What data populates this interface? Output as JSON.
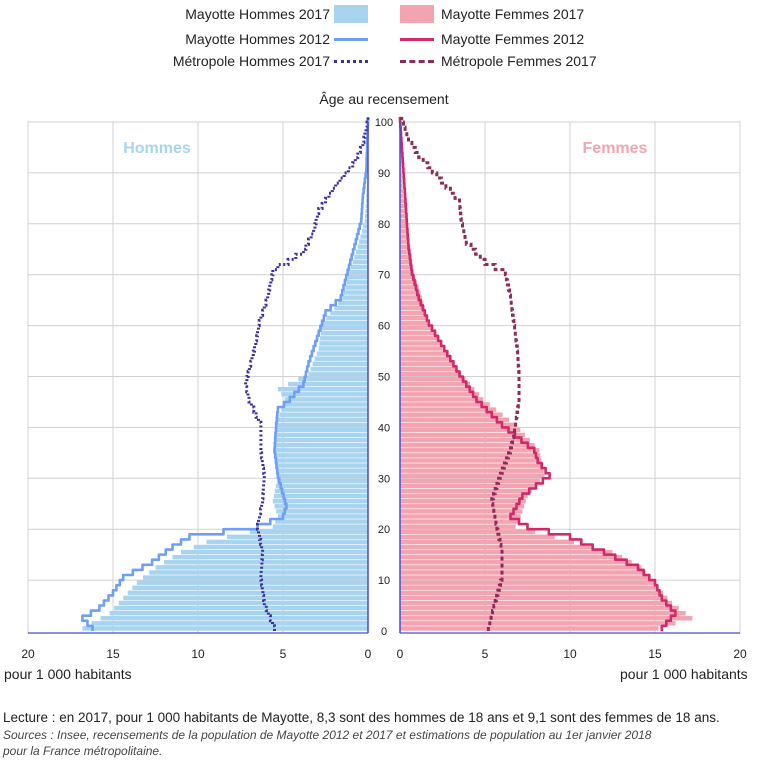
{
  "legend": {
    "mh2017": "Mayotte Hommes 2017",
    "mh2012": "Mayotte Hommes 2012",
    "metroH2017": "Métropole Hommes 2017",
    "mf2017": "Mayotte Femmes 2017",
    "mf2012": "Mayotte Femmes 2012",
    "metroF2017": "Métropole Femmes 2017"
  },
  "colors": {
    "men_bar": "#a8d4f0",
    "men_line": "#6f9ef5",
    "men_metro": "#3c309c",
    "women_bar": "#f3a4b1",
    "women_line": "#d12a6a",
    "women_metro": "#8e2b57",
    "axis": "#4a4ad0"
  },
  "units": {
    "left": "pour 1 000 habitants",
    "right": "pour 1 000 habitants"
  },
  "notes": {
    "lecture": "Lecture : en 2017, pour 1 000 habitants de Mayotte, 8,3 sont des hommes de 18 ans et 9,1 sont des femmes de 18 ans.",
    "sources_line1": "Sources : Insee, recensements de la population de Mayotte 2012 et 2017 et estimations de population au 1er janvier 2018",
    "sources_line2": "pour la France métropolitaine."
  },
  "chart_data": {
    "type": "population-pyramid",
    "title": "Âge au recensement",
    "label_men": "Hommes",
    "label_women": "Femmes",
    "x_range": [
      0,
      20
    ],
    "x_ticks": [
      0,
      5,
      10,
      15,
      20
    ],
    "age_range": [
      0,
      100
    ],
    "age_ticks": [
      0,
      10,
      20,
      30,
      40,
      50,
      60,
      70,
      80,
      90,
      100
    ],
    "men_2017_anchors": [
      [
        0,
        16.8
      ],
      [
        3,
        15.2
      ],
      [
        6,
        14.4
      ],
      [
        9,
        13.6
      ],
      [
        12,
        12.5
      ],
      [
        15,
        11.0
      ],
      [
        17,
        9.5
      ],
      [
        18,
        8.3
      ],
      [
        20,
        5.6
      ],
      [
        22,
        5.3
      ],
      [
        25,
        5.6
      ],
      [
        30,
        5.3
      ],
      [
        35,
        5.5
      ],
      [
        40,
        5.4
      ],
      [
        45,
        4.9
      ],
      [
        47,
        5.3
      ],
      [
        50,
        3.5
      ],
      [
        55,
        2.9
      ],
      [
        60,
        2.7
      ],
      [
        65,
        1.5
      ],
      [
        70,
        1.1
      ],
      [
        75,
        0.6
      ],
      [
        80,
        0.2
      ],
      [
        85,
        0.1
      ],
      [
        90,
        0
      ],
      [
        100,
        0
      ]
    ],
    "men_2012_anchors": [
      [
        0,
        16.2
      ],
      [
        2,
        16.8
      ],
      [
        4,
        15.8
      ],
      [
        7,
        15.0
      ],
      [
        10,
        14.4
      ],
      [
        13,
        12.7
      ],
      [
        16,
        11.5
      ],
      [
        18,
        10.5
      ],
      [
        20,
        6.5
      ],
      [
        22,
        5.0
      ],
      [
        24,
        4.8
      ],
      [
        30,
        5.3
      ],
      [
        35,
        5.5
      ],
      [
        40,
        5.4
      ],
      [
        43,
        5.3
      ],
      [
        45,
        4.6
      ],
      [
        48,
        3.8
      ],
      [
        52,
        3.5
      ],
      [
        58,
        2.9
      ],
      [
        62,
        2.5
      ],
      [
        65,
        1.6
      ],
      [
        70,
        1.2
      ],
      [
        75,
        0.8
      ],
      [
        80,
        0.4
      ],
      [
        85,
        0.3
      ],
      [
        90,
        0.1
      ],
      [
        100,
        0
      ]
    ],
    "men_metro_anchors": [
      [
        0,
        5.5
      ],
      [
        5,
        6.1
      ],
      [
        10,
        6.3
      ],
      [
        15,
        6.2
      ],
      [
        20,
        6.5
      ],
      [
        25,
        6.2
      ],
      [
        30,
        6.1
      ],
      [
        35,
        6.3
      ],
      [
        40,
        6.3
      ],
      [
        45,
        7.0
      ],
      [
        48,
        7.2
      ],
      [
        52,
        6.9
      ],
      [
        56,
        6.6
      ],
      [
        60,
        6.4
      ],
      [
        65,
        5.9
      ],
      [
        70,
        5.6
      ],
      [
        71,
        5.3
      ],
      [
        72,
        4.7
      ],
      [
        74,
        3.8
      ],
      [
        78,
        3.2
      ],
      [
        82,
        2.9
      ],
      [
        87,
        1.9
      ],
      [
        91,
        0.9
      ],
      [
        95,
        0.3
      ],
      [
        100,
        0
      ]
    ],
    "women_2017_anchors": [
      [
        0,
        15.2
      ],
      [
        2,
        17.2
      ],
      [
        5,
        16.0
      ],
      [
        8,
        15.2
      ],
      [
        12,
        14.2
      ],
      [
        15,
        12.5
      ],
      [
        18,
        9.1
      ],
      [
        20,
        6.8
      ],
      [
        22,
        7.1
      ],
      [
        26,
        7.5
      ],
      [
        30,
        8.5
      ],
      [
        35,
        8.2
      ],
      [
        40,
        6.8
      ],
      [
        45,
        4.9
      ],
      [
        50,
        3.6
      ],
      [
        55,
        2.5
      ],
      [
        60,
        1.7
      ],
      [
        65,
        1.3
      ],
      [
        70,
        0.8
      ],
      [
        75,
        0.6
      ],
      [
        80,
        0.4
      ],
      [
        85,
        0.2
      ],
      [
        90,
        0.1
      ],
      [
        100,
        0
      ]
    ],
    "women_2012_anchors": [
      [
        0,
        15.4
      ],
      [
        3,
        16.2
      ],
      [
        6,
        15.4
      ],
      [
        9,
        15.0
      ],
      [
        12,
        14.0
      ],
      [
        15,
        12.0
      ],
      [
        18,
        10.0
      ],
      [
        20,
        7.5
      ],
      [
        22,
        6.5
      ],
      [
        26,
        7.2
      ],
      [
        30,
        8.8
      ],
      [
        33,
        8.1
      ],
      [
        35,
        7.9
      ],
      [
        40,
        6.0
      ],
      [
        45,
        4.5
      ],
      [
        50,
        3.5
      ],
      [
        55,
        2.6
      ],
      [
        60,
        1.7
      ],
      [
        65,
        1.1
      ],
      [
        70,
        0.7
      ],
      [
        75,
        0.5
      ],
      [
        80,
        0.4
      ],
      [
        85,
        0.3
      ],
      [
        90,
        0.2
      ],
      [
        100,
        0
      ]
    ],
    "women_metro_anchors": [
      [
        0,
        5.2
      ],
      [
        5,
        5.6
      ],
      [
        10,
        6.0
      ],
      [
        15,
        6.0
      ],
      [
        20,
        5.7
      ],
      [
        25,
        5.4
      ],
      [
        30,
        5.9
      ],
      [
        35,
        6.5
      ],
      [
        40,
        6.8
      ],
      [
        45,
        7.0
      ],
      [
        50,
        7.0
      ],
      [
        55,
        6.9
      ],
      [
        60,
        6.7
      ],
      [
        65,
        6.5
      ],
      [
        70,
        6.2
      ],
      [
        72,
        5.0
      ],
      [
        76,
        3.9
      ],
      [
        80,
        3.6
      ],
      [
        84,
        3.5
      ],
      [
        87,
        2.7
      ],
      [
        90,
        1.9
      ],
      [
        93,
        1.1
      ],
      [
        96,
        0.5
      ],
      [
        100,
        0.1
      ]
    ]
  }
}
